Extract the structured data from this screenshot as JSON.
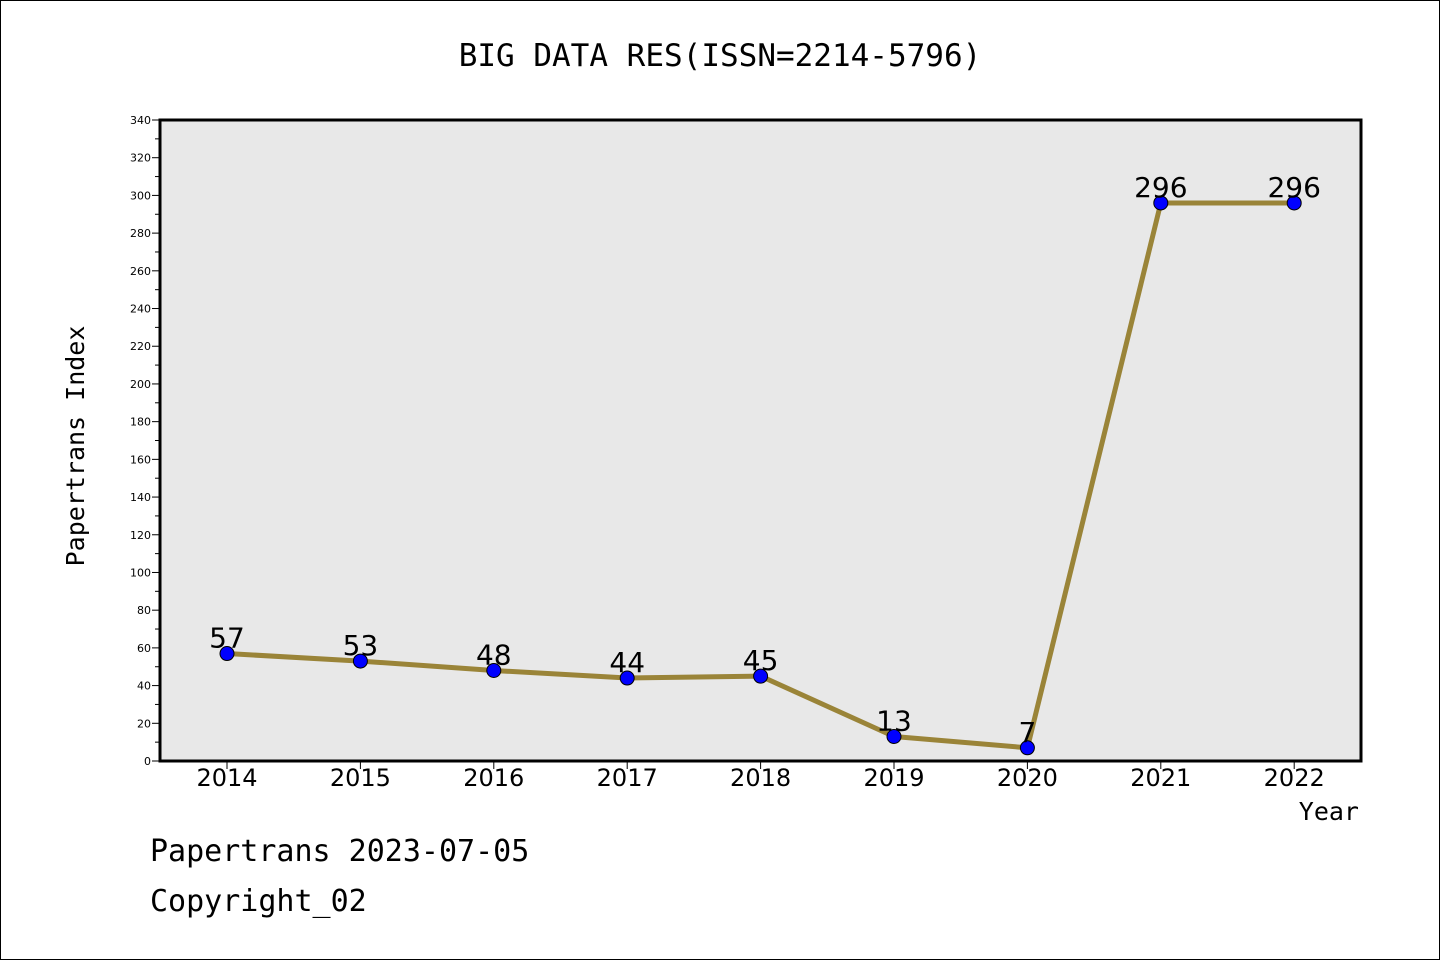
{
  "chart_data": {
    "type": "line",
    "title": "BIG DATA RES(ISSN=2214-5796)",
    "xlabel": "Year",
    "ylabel": "Papertrans Index",
    "categories": [
      "2014",
      "2015",
      "2016",
      "2017",
      "2018",
      "2019",
      "2020",
      "2021",
      "2022"
    ],
    "series": [
      {
        "values": [
          57,
          53,
          48,
          44,
          45,
          13,
          7,
          296,
          296
        ]
      }
    ],
    "ylim": [
      0,
      340
    ],
    "yticks": [
      0,
      20,
      40,
      60,
      80,
      100,
      120,
      140,
      160,
      180,
      200,
      220,
      240,
      260,
      280,
      300,
      320,
      340
    ],
    "grid": false,
    "legend": "none",
    "colors": {
      "line": "#9a8438",
      "marker": "#0000ff",
      "plot_background": "#e8e8e8"
    }
  },
  "footer": {
    "line1": "Papertrans 2023-07-05",
    "line2": "Copyright_02"
  }
}
